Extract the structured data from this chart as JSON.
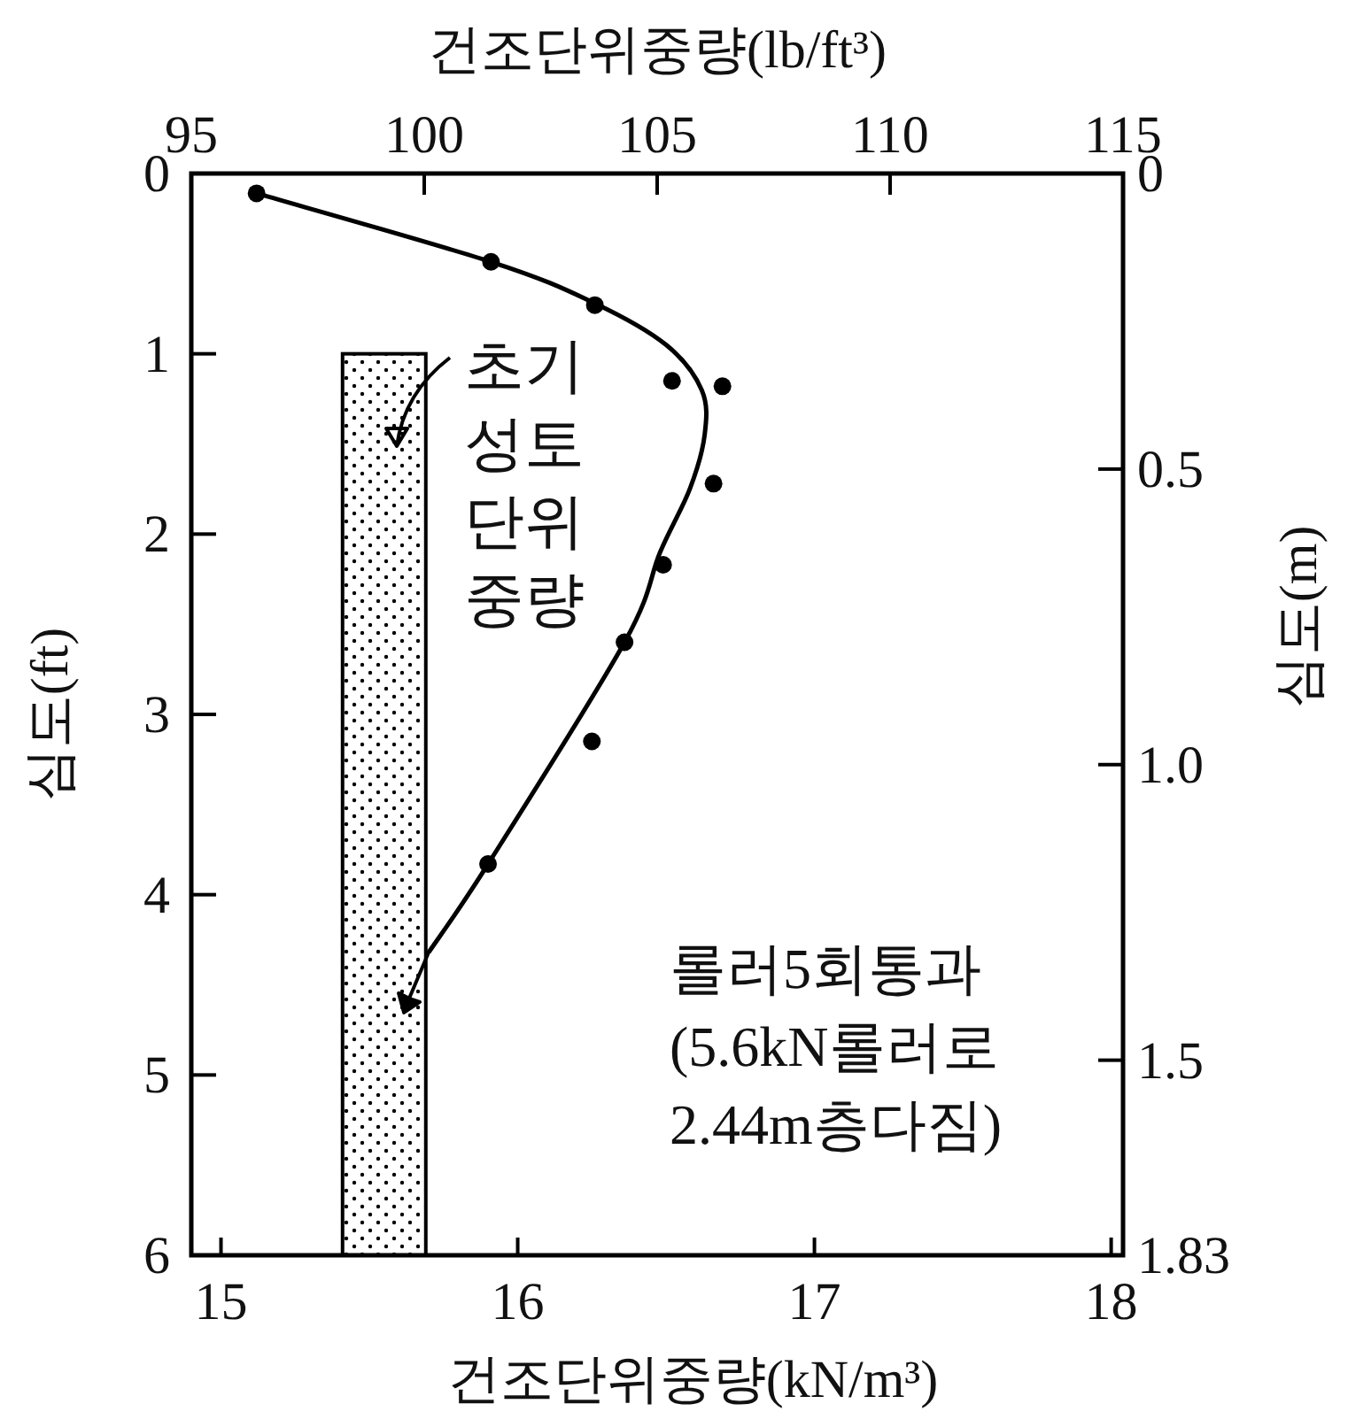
{
  "chart_data": {
    "type": "scatter",
    "xlabel": "건조단위중량(kN/m³)",
    "x2label": "건조단위중량(lb/ft³)",
    "ylabel": "심도(ft)",
    "y2label": "심도(m)",
    "xlim": [
      14.9,
      18.04
    ],
    "xticks": [
      15,
      16,
      17,
      18
    ],
    "x2lim": [
      95,
      115
    ],
    "x2ticks": [
      95,
      100,
      105,
      110,
      115
    ],
    "ylim": [
      6,
      0
    ],
    "yticks": [
      0,
      1,
      2,
      3,
      4,
      5,
      6
    ],
    "y2lim": [
      1.83,
      0
    ],
    "y2ticks": [
      0,
      0.5,
      {
        "value": 1.0,
        "label": "1.0"
      },
      1.5,
      1.83
    ],
    "grid": false,
    "series": [
      {
        "type": "bar",
        "color": "#000000",
        "x": [
          15.55
        ],
        "base": [
          1
        ],
        "values": [
          5
        ]
      },
      {
        "type": "line",
        "color": "#000000",
        "marker": "none",
        "line_style": "solid",
        "x": [
          15.12,
          15.91,
          16.26,
          16.5,
          16.62,
          16.63,
          16.58,
          16.48,
          16.36,
          15.9,
          15.7
        ],
        "values": [
          0.11,
          0.49,
          0.72,
          0.95,
          1.2,
          1.45,
          1.75,
          2.1,
          2.6,
          3.83,
          4.32
        ]
      },
      {
        "color": "#000000",
        "marker": "circle",
        "x": [
          15.12,
          15.91,
          16.26,
          16.52,
          16.69,
          16.66,
          16.49,
          16.36,
          16.25,
          15.9
        ],
        "values": [
          0.11,
          0.49,
          0.73,
          1.15,
          1.18,
          1.72,
          2.17,
          2.6,
          3.15,
          3.83
        ]
      }
    ],
    "annotations": [
      "초기\n성토\n단위\n중량",
      "롤러5회통과\n(5.6kN롤러로\n2.44m층다짐)"
    ]
  }
}
